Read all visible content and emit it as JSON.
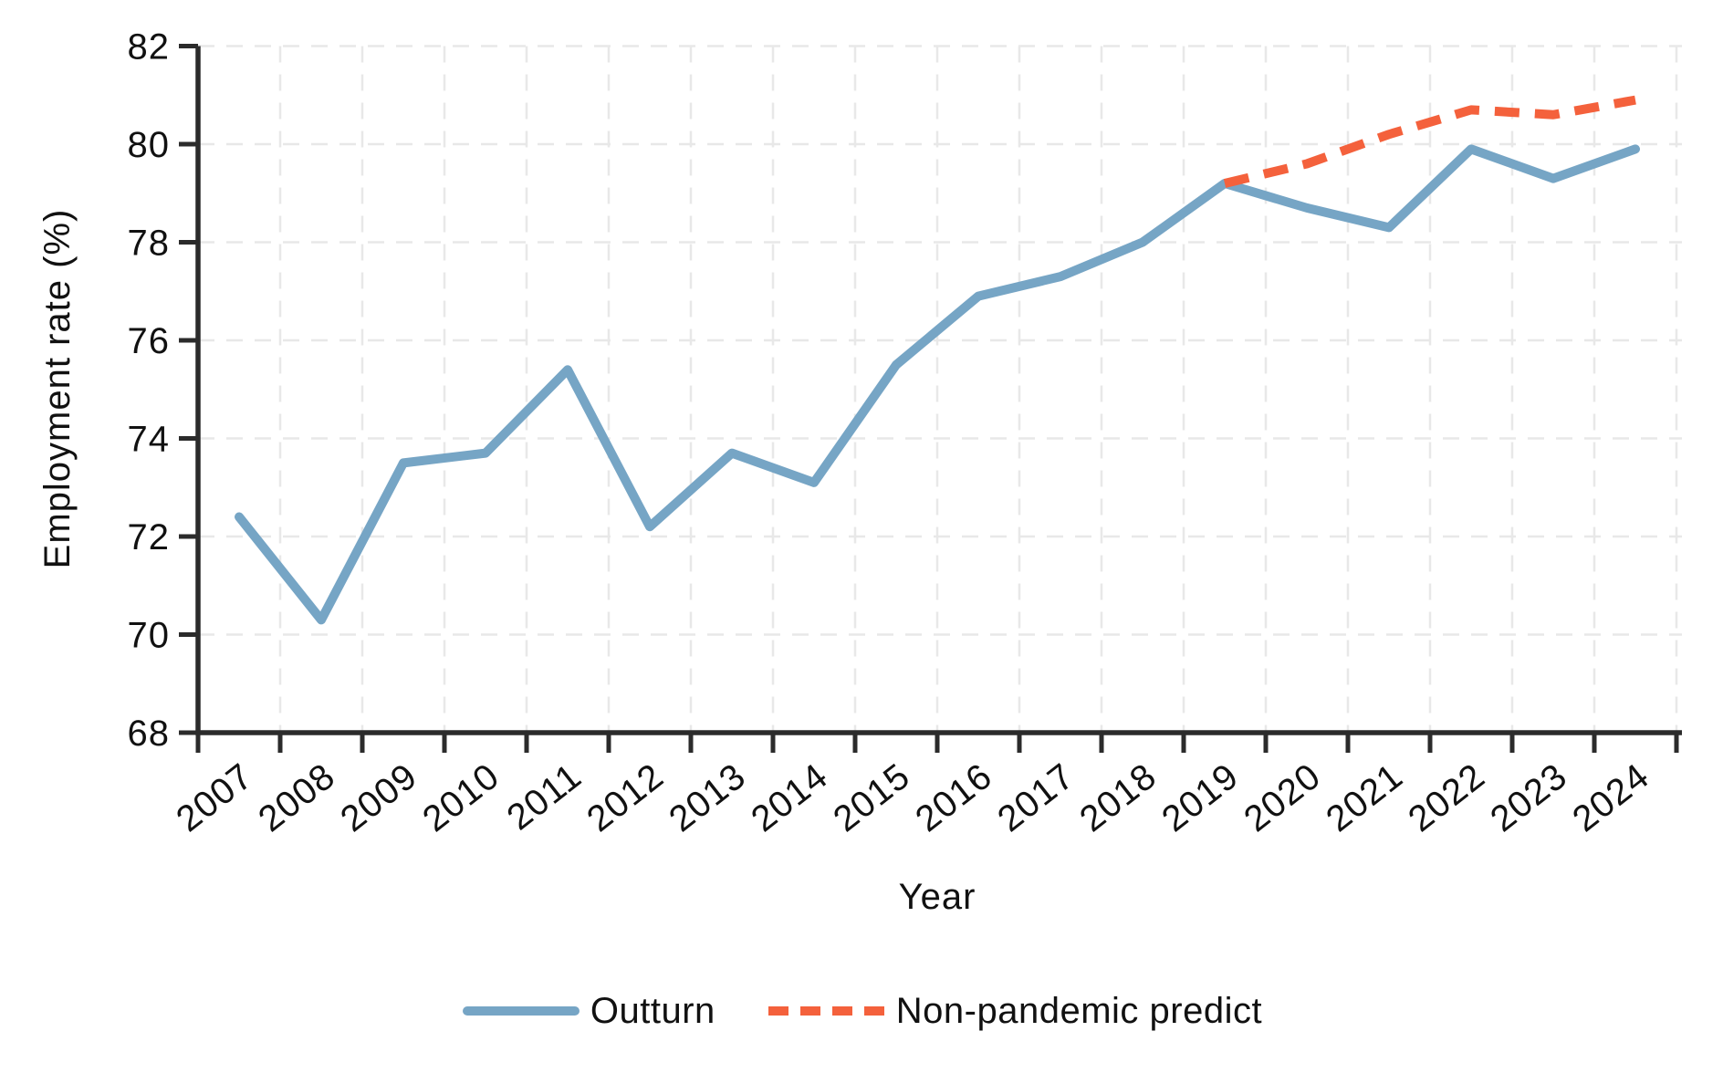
{
  "figure": {
    "background": "#ffffff"
  },
  "chart_data": {
    "type": "line",
    "title": "",
    "xlabel": "Year",
    "ylabel": "Employment rate (%)",
    "categories": [
      "2007",
      "2008",
      "2009",
      "2010",
      "2011",
      "2012",
      "2013",
      "2014",
      "2015",
      "2016",
      "2017",
      "2018",
      "2019",
      "2020",
      "2021",
      "2022",
      "2023",
      "2024"
    ],
    "ylim": [
      68,
      82
    ],
    "yticks": [
      68,
      70,
      72,
      74,
      76,
      78,
      80,
      82
    ],
    "grid": {
      "horizontal": true,
      "vertical": true,
      "style": "dashed",
      "color": "#e8e8e8"
    },
    "axis_color": "#2b2b2b",
    "legend_position": "bottom-center",
    "series": [
      {
        "name": "Outturn",
        "color": "#76a5c5",
        "line_style": "solid",
        "start_category": "2007",
        "values": [
          72.4,
          70.3,
          73.5,
          73.7,
          75.4,
          72.2,
          73.7,
          73.1,
          75.5,
          76.9,
          77.3,
          78.0,
          79.2,
          78.7,
          78.3,
          79.9,
          79.3,
          79.9
        ]
      },
      {
        "name": "Non-pandemic predict",
        "color": "#f4613c",
        "line_style": "dashed",
        "start_category": "2019",
        "values": [
          79.2,
          79.6,
          80.2,
          80.7,
          80.6,
          80.9
        ]
      }
    ]
  },
  "legend": {
    "items": [
      {
        "label": "Outturn",
        "swatch": "solid-line",
        "color": "#76a5c5"
      },
      {
        "label": "Non-pandemic predict",
        "swatch": "dashed-line",
        "color": "#f4613c"
      }
    ]
  }
}
